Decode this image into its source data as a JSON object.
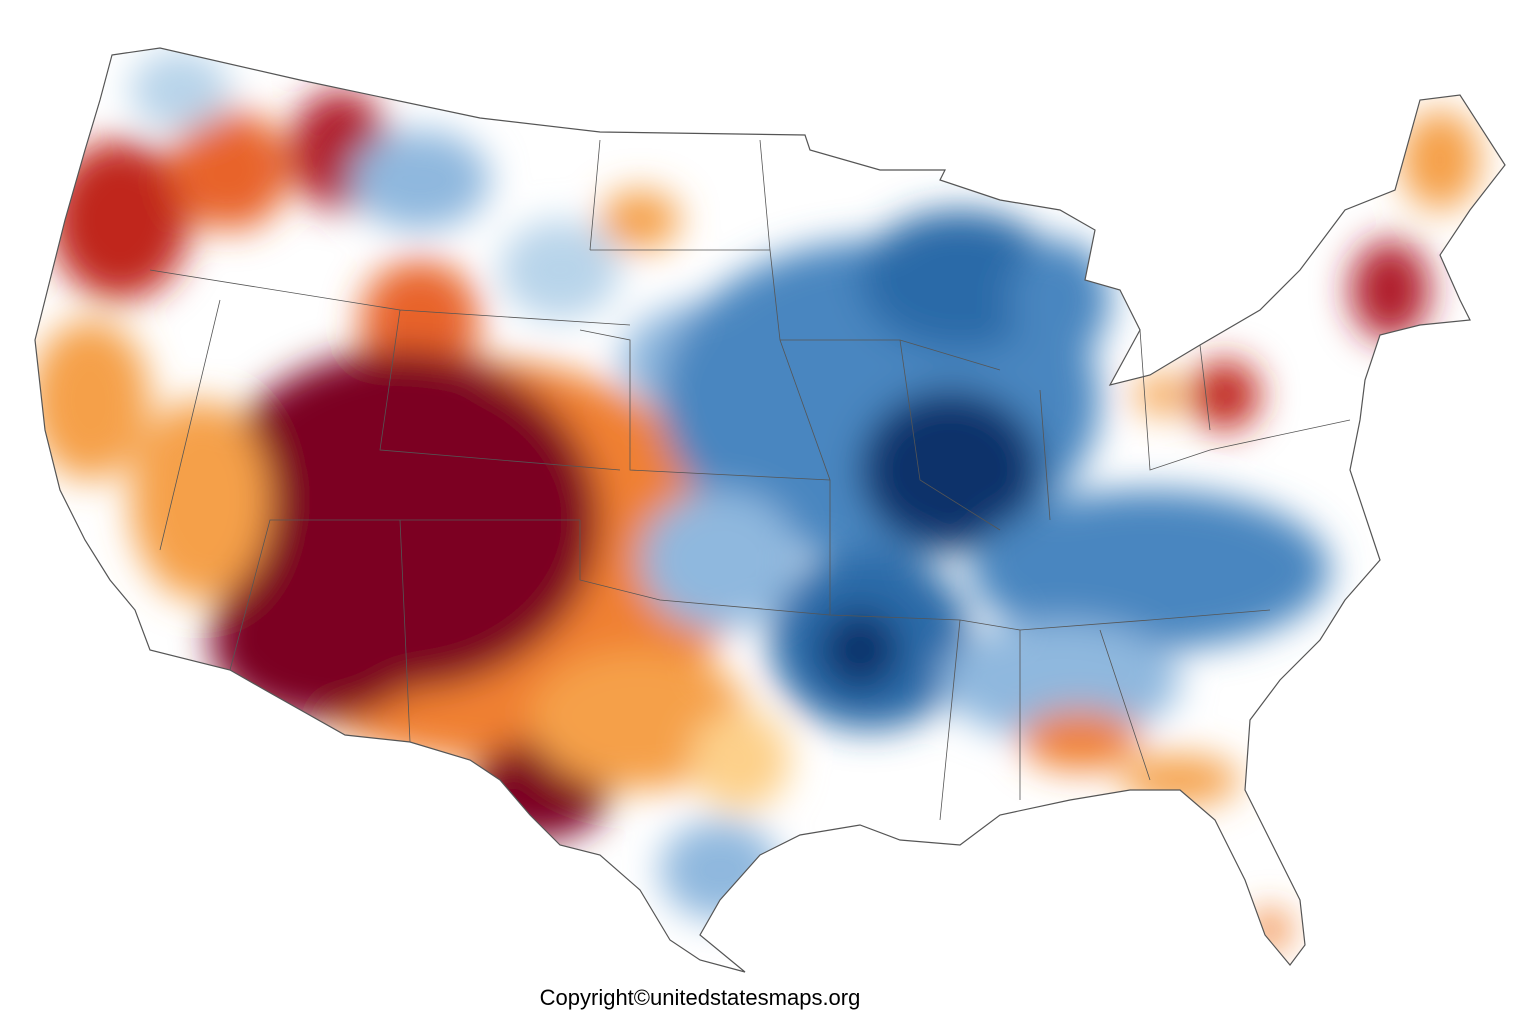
{
  "footer": {
    "copyright": "Copyright©unitedstatesmaps.org"
  }
}
